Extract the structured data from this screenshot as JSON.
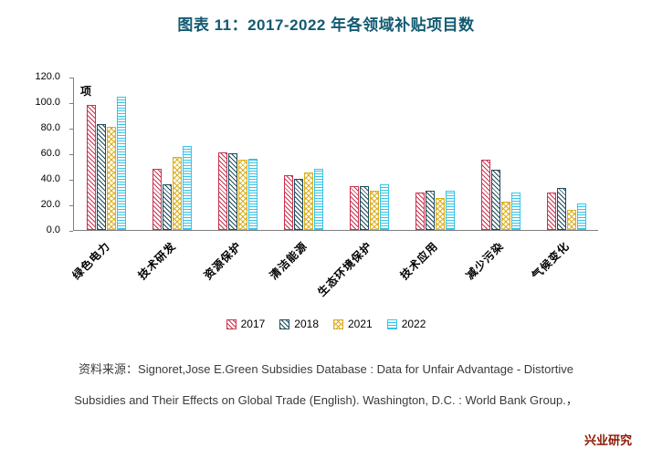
{
  "title": "图表 11：2017-2022 年各领域补贴项目数",
  "unit_label": "项",
  "colors": {
    "title": "#115a72",
    "brand": "#8c1500",
    "axis": "#7f7f7f"
  },
  "chart_data": {
    "type": "bar",
    "categories": [
      "绿色电力",
      "技术研发",
      "资源保护",
      "清洁能源",
      "生态环境保护",
      "技术应用",
      "减少污染",
      "气候变化"
    ],
    "series": [
      {
        "name": "2017",
        "color": "#c8334f",
        "pattern": "diag",
        "values": [
          98,
          48,
          61,
          43,
          34,
          29,
          55,
          29
        ]
      },
      {
        "name": "2018",
        "color": "#1e4a5a",
        "pattern": "diag",
        "values": [
          83,
          36,
          60,
          40,
          34,
          31,
          47,
          33
        ]
      },
      {
        "name": "2021",
        "color": "#ddae1e",
        "pattern": "cross",
        "values": [
          81,
          57,
          55,
          45,
          31,
          25,
          22,
          16
        ]
      },
      {
        "name": "2022",
        "color": "#35c4e8",
        "pattern": "horiz",
        "values": [
          104,
          66,
          56,
          48,
          36,
          31,
          29,
          21
        ]
      }
    ],
    "ylim": [
      0,
      120
    ],
    "ytick_step": 20,
    "ytick_labels": [
      "0.0",
      "20.0",
      "40.0",
      "60.0",
      "80.0",
      "100.0",
      "120.0"
    ],
    "legend_position": "bottom",
    "grid": false
  },
  "source": {
    "line1": "资料来源：Signoret,Jose E.Green Subsidies Database : Data for Unfair Advantage - Distortive",
    "line2": "Subsidies and Their Effects on Global Trade (English). Washington, D.C. : World Bank Group.，"
  },
  "footer": {
    "brand": "兴业研究"
  }
}
